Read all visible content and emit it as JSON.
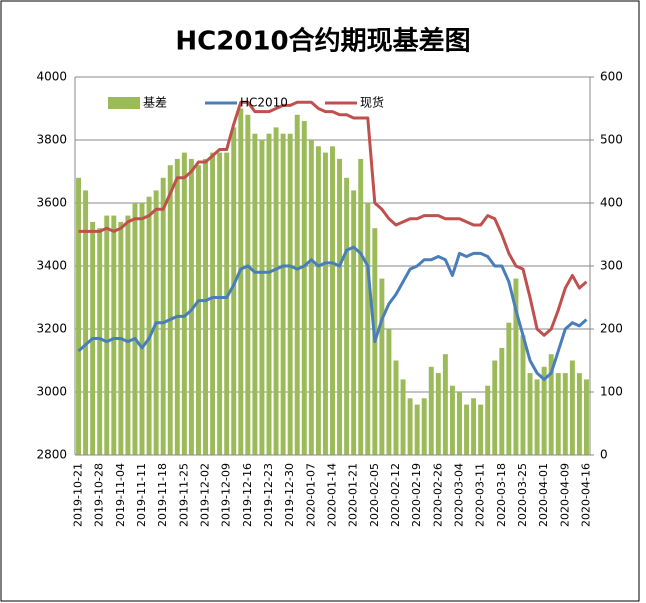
{
  "chart_data": {
    "type": "bar",
    "title": "HC2010合约期现基差图",
    "categories": [
      "2019-10-21",
      null,
      null,
      "2019-10-28",
      null,
      null,
      "2019-11-04",
      null,
      null,
      "2019-11-11",
      null,
      null,
      "2019-11-18",
      null,
      null,
      "2019-11-25",
      null,
      null,
      "2019-12-02",
      null,
      null,
      "2019-12-09",
      null,
      null,
      "2019-12-16",
      null,
      null,
      "2019-12-23",
      null,
      null,
      "2019-12-30",
      null,
      null,
      "2020-01-07",
      null,
      null,
      "2020-01-14",
      null,
      null,
      "2020-01-21",
      null,
      null,
      "2020-02-05",
      null,
      null,
      "2020-02-12",
      null,
      null,
      "2020-02-19",
      null,
      null,
      "2020-02-26",
      null,
      null,
      "2020-03-04",
      null,
      null,
      "2020-03-11",
      null,
      null,
      "2020-03-18",
      null,
      null,
      "2020-03-25",
      null,
      null,
      "2020-04-01",
      null,
      null,
      "2020-04-09",
      null,
      null,
      "2020-04-16"
    ],
    "series": [
      {
        "name": "基差",
        "type": "bar",
        "axis": "y2",
        "color": "#9bbb59",
        "values": [
          440,
          420,
          370,
          360,
          380,
          380,
          370,
          380,
          400,
          400,
          410,
          420,
          440,
          460,
          470,
          480,
          470,
          460,
          470,
          480,
          480,
          480,
          520,
          550,
          540,
          510,
          500,
          510,
          520,
          510,
          510,
          540,
          530,
          500,
          490,
          480,
          490,
          470,
          440,
          420,
          470,
          400,
          360,
          280,
          200,
          150,
          120,
          90,
          80,
          90,
          140,
          130,
          160,
          110,
          100,
          80,
          90,
          80,
          110,
          150,
          170,
          210,
          280,
          190,
          130,
          120,
          140,
          160,
          130,
          130,
          150,
          130,
          120
        ]
      },
      {
        "name": "HC2010",
        "type": "line",
        "color": "#4a7ebb",
        "values": [
          3130,
          3150,
          3170,
          3170,
          3160,
          3170,
          3170,
          3160,
          3170,
          3140,
          3170,
          3220,
          3220,
          3230,
          3240,
          3240,
          3260,
          3290,
          3290,
          3300,
          3300,
          3300,
          3340,
          3390,
          3400,
          3380,
          3380,
          3380,
          3390,
          3400,
          3400,
          3390,
          3400,
          3420,
          3400,
          3410,
          3410,
          3400,
          3450,
          3460,
          3440,
          3400,
          3160,
          3230,
          3280,
          3310,
          3350,
          3390,
          3400,
          3420,
          3420,
          3430,
          3420,
          3370,
          3440,
          3430,
          3440,
          3440,
          3430,
          3400,
          3400,
          3350,
          3260,
          3180,
          3100,
          3060,
          3040,
          3060,
          3130,
          3200,
          3220,
          3210,
          3230
        ]
      },
      {
        "name": "现货",
        "type": "line",
        "color": "#c0504d",
        "values": [
          3510,
          3510,
          3510,
          3510,
          3520,
          3510,
          3520,
          3540,
          3550,
          3550,
          3560,
          3580,
          3580,
          3630,
          3680,
          3680,
          3700,
          3730,
          3730,
          3750,
          3770,
          3770,
          3850,
          3920,
          3920,
          3890,
          3890,
          3890,
          3900,
          3910,
          3910,
          3920,
          3920,
          3920,
          3900,
          3890,
          3890,
          3880,
          3880,
          3870,
          3870,
          3870,
          3600,
          3580,
          3550,
          3530,
          3540,
          3550,
          3550,
          3560,
          3560,
          3560,
          3550,
          3550,
          3550,
          3540,
          3530,
          3530,
          3560,
          3550,
          3500,
          3440,
          3400,
          3390,
          3300,
          3200,
          3180,
          3200,
          3260,
          3330,
          3370,
          3330,
          3350
        ]
      }
    ],
    "ylim": [
      2800,
      4000
    ],
    "yticks": [
      2800,
      3000,
      3200,
      3400,
      3600,
      3800,
      4000
    ],
    "y2lim": [
      0,
      600
    ],
    "y2ticks": [
      0,
      100,
      200,
      300,
      400,
      500,
      600
    ],
    "grid": true,
    "legend": "top-left"
  }
}
